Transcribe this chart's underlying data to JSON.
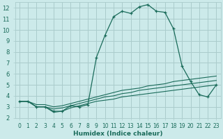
{
  "xlabel": "Humidex (Indice chaleur)",
  "background_color": "#cceaea",
  "grid_color": "#aacccc",
  "line_color": "#1a6b5a",
  "xlim": [
    -0.5,
    23.5
  ],
  "ylim": [
    2,
    12.5
  ],
  "xticks": [
    0,
    1,
    2,
    3,
    4,
    5,
    6,
    7,
    8,
    9,
    10,
    11,
    12,
    13,
    14,
    15,
    16,
    17,
    18,
    19,
    20,
    21,
    22,
    23
  ],
  "yticks": [
    2,
    3,
    4,
    5,
    6,
    7,
    8,
    9,
    10,
    11,
    12
  ],
  "series_main": {
    "x": [
      0,
      1,
      2,
      3,
      4,
      5,
      6,
      7,
      8,
      9,
      10,
      11,
      12,
      13,
      14,
      15,
      16,
      17,
      18,
      19,
      20,
      21,
      22,
      23
    ],
    "y": [
      3.5,
      3.5,
      3.0,
      3.0,
      2.6,
      2.6,
      3.1,
      3.0,
      3.2,
      7.5,
      9.5,
      11.2,
      11.7,
      11.5,
      12.1,
      12.3,
      11.7,
      11.6,
      10.1,
      6.7,
      5.3,
      4.1,
      3.9,
      5.0
    ]
  },
  "series_lines": [
    {
      "x": [
        0,
        1,
        2,
        3,
        4,
        5,
        6,
        7,
        8,
        9,
        10,
        11,
        12,
        13,
        14,
        15,
        16,
        17,
        18,
        19,
        20,
        21,
        22,
        23
      ],
      "y": [
        3.5,
        3.5,
        3.2,
        3.2,
        3.0,
        3.1,
        3.3,
        3.5,
        3.7,
        3.9,
        4.1,
        4.3,
        4.5,
        4.6,
        4.7,
        4.9,
        5.0,
        5.1,
        5.3,
        5.4,
        5.5,
        5.6,
        5.7,
        5.8
      ]
    },
    {
      "x": [
        0,
        1,
        2,
        3,
        4,
        5,
        6,
        7,
        8,
        9,
        10,
        11,
        12,
        13,
        14,
        15,
        16,
        17,
        18,
        19,
        20,
        21,
        22,
        23
      ],
      "y": [
        3.5,
        3.5,
        3.0,
        3.0,
        2.8,
        2.9,
        3.1,
        3.3,
        3.5,
        3.7,
        3.9,
        4.0,
        4.2,
        4.3,
        4.5,
        4.6,
        4.7,
        4.8,
        4.9,
        5.0,
        5.1,
        5.2,
        5.3,
        5.4
      ]
    },
    {
      "x": [
        0,
        1,
        2,
        3,
        4,
        5,
        6,
        7,
        8,
        9,
        10,
        11,
        12,
        13,
        14,
        15,
        16,
        17,
        18,
        19,
        20,
        21,
        22,
        23
      ],
      "y": [
        3.5,
        3.5,
        3.0,
        3.0,
        2.5,
        2.6,
        2.9,
        3.1,
        3.3,
        3.5,
        3.6,
        3.7,
        3.9,
        4.0,
        4.1,
        4.2,
        4.3,
        4.4,
        4.5,
        4.6,
        4.7,
        4.8,
        4.9,
        5.0
      ]
    }
  ]
}
